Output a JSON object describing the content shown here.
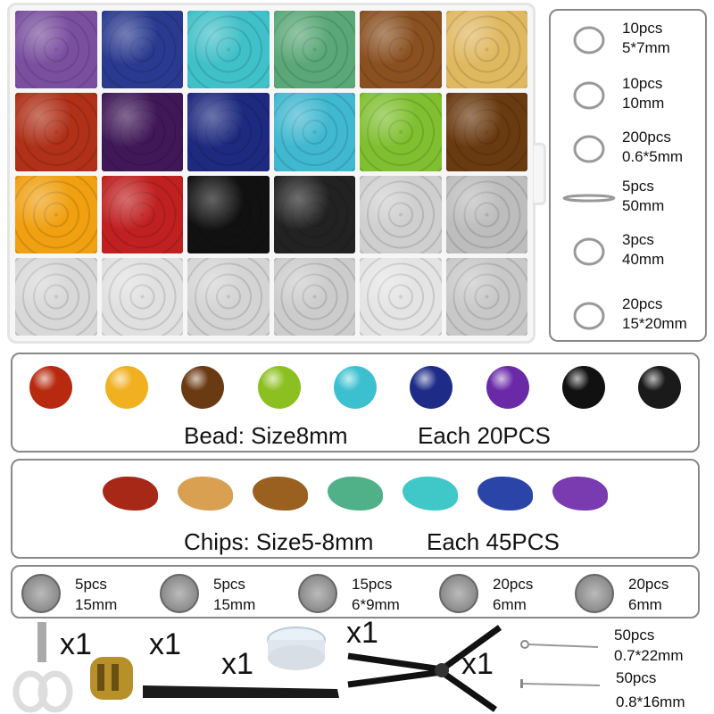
{
  "tray": {
    "cell_colors": [
      "#7a4fa0",
      "#2a3a90",
      "#40c0c8",
      "#5aa878",
      "#8a5020",
      "#e0b860",
      "#b03018",
      "#401858",
      "#1e2a80",
      "#40b8d0",
      "#80c030",
      "#6a3a10",
      "#f0a010",
      "#c02020",
      "#111111",
      "#222222",
      "#cfcfcf",
      "#bdbdbd",
      "#d8d8d8",
      "#e0e0e0",
      "#d4d4d4",
      "#cccccc",
      "#e4e4e4",
      "#c8c8c8"
    ]
  },
  "findings": [
    {
      "qty": "10pcs",
      "size": "5*7mm",
      "icon": "pinch-bail-icon"
    },
    {
      "qty": "10pcs",
      "size": "10mm",
      "icon": "lobster-clasp-icon"
    },
    {
      "qty": "200pcs",
      "size": "0.6*5mm",
      "icon": "jump-ring-icon"
    },
    {
      "qty": "5pcs",
      "size": "50mm",
      "icon": "extender-chain-icon"
    },
    {
      "qty": "3pcs",
      "size": "40mm",
      "icon": "chain-icon"
    },
    {
      "qty": "20pcs",
      "size": "15*20mm",
      "icon": "earring-hook-icon"
    }
  ],
  "beads": {
    "colors": [
      "#b82a10",
      "#f0b020",
      "#6a3a12",
      "#8cc020",
      "#3cc0d0",
      "#1e2c88",
      "#6a2aa8",
      "#111111",
      "#1a1a1a"
    ],
    "size_label": "Bead: Size8mm",
    "each_label": "Each 20PCS"
  },
  "chips": {
    "colors": [
      "#a82818",
      "#d8a050",
      "#9a6020",
      "#50b088",
      "#40c8c8",
      "#2a44a8",
      "#7a3ab0"
    ],
    "size_label": "Chips: Size5-8mm",
    "each_label": "Each 45PCS"
  },
  "charms": [
    {
      "qty": "5pcs",
      "size": "15mm",
      "icon": "om-charm-icon"
    },
    {
      "qty": "5pcs",
      "size": "15mm",
      "icon": "lotus-charm-icon"
    },
    {
      "qty": "15pcs",
      "size": "6*9mm",
      "icon": "tibetan-bead-icon"
    },
    {
      "qty": "20pcs",
      "size": "6mm",
      "icon": "spacer-bead-icon"
    },
    {
      "qty": "20pcs",
      "size": "6mm",
      "icon": "rondelle-spacer-icon"
    }
  ],
  "tools": {
    "scissors_qty": "x1",
    "opener_ring_qty": "x1",
    "tweezers_qty": "x1",
    "cord_qty": "x1",
    "pliers_qty": "x1"
  },
  "pins": [
    {
      "qty": "50pcs",
      "size": "0.7*22mm",
      "icon": "eye-pin-icon"
    },
    {
      "qty": "50pcs",
      "size": "0.8*16mm",
      "icon": "head-pin-icon"
    }
  ]
}
